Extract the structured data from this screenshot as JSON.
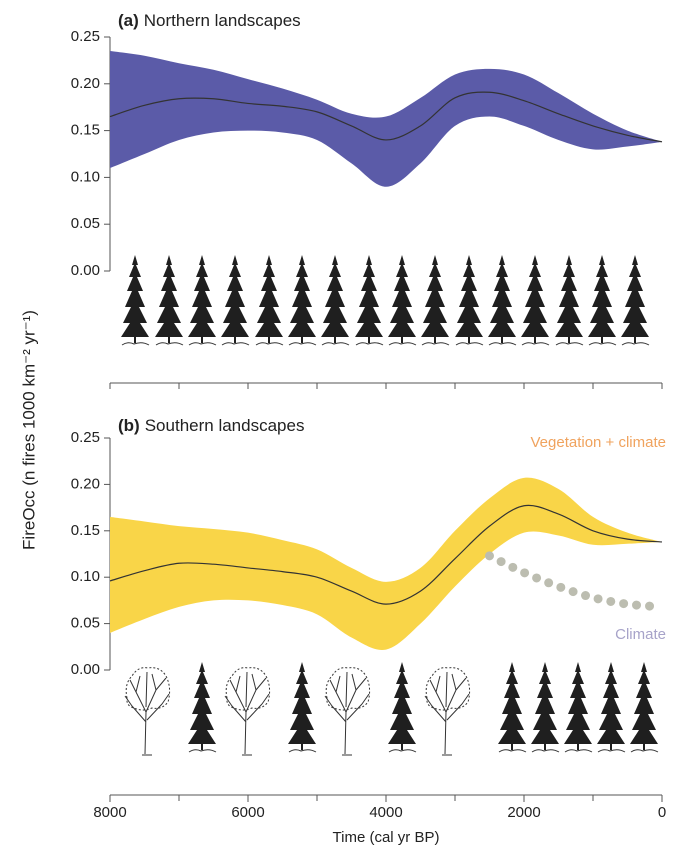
{
  "ylabel": "FireOcc (n fires 1000 km⁻² yr⁻¹)",
  "chart_data": [
    {
      "type": "band-line",
      "panel": "(a)",
      "title": "Northern landscapes",
      "x": [
        8000,
        7500,
        7000,
        6500,
        6000,
        5500,
        5000,
        4500,
        4000,
        3500,
        3000,
        2500,
        2000,
        1500,
        1000,
        500,
        0
      ],
      "band": {
        "color": "#5b5ba8",
        "upper": [
          0.235,
          0.23,
          0.222,
          0.215,
          0.205,
          0.195,
          0.183,
          0.168,
          0.165,
          0.185,
          0.21,
          0.216,
          0.21,
          0.19,
          0.168,
          0.15,
          0.138
        ],
        "lower": [
          0.11,
          0.125,
          0.14,
          0.148,
          0.15,
          0.148,
          0.14,
          0.115,
          0.09,
          0.115,
          0.155,
          0.165,
          0.155,
          0.14,
          0.13,
          0.133,
          0.138
        ]
      },
      "series": [
        {
          "color": "#333333",
          "style": "solid",
          "values": [
            0.165,
            0.177,
            0.184,
            0.184,
            0.179,
            0.176,
            0.17,
            0.155,
            0.14,
            0.155,
            0.185,
            0.191,
            0.182,
            0.168,
            0.155,
            0.145,
            0.138
          ]
        }
      ],
      "xlim": [
        8000,
        0
      ],
      "xminorticks": [
        8000,
        7000,
        6000,
        5000,
        4000,
        3000,
        2000,
        1000,
        0
      ],
      "ylim": [
        0,
        0.25
      ],
      "yticks": [
        {
          "value": 0,
          "label": "0.00"
        },
        0.05,
        {
          "value": 0.1,
          "label": "0.10"
        },
        0.15,
        {
          "value": 0.2,
          "label": "0.20"
        },
        0.25
      ]
    },
    {
      "type": "band-line",
      "panel": "(b)",
      "title": "Southern landscapes",
      "x": [
        8000,
        7500,
        7000,
        6500,
        6000,
        5500,
        5000,
        4500,
        4000,
        3500,
        3000,
        2500,
        2000,
        1500,
        1000,
        500,
        0
      ],
      "band": {
        "color": "#f9d548",
        "upper": [
          0.165,
          0.16,
          0.155,
          0.152,
          0.148,
          0.14,
          0.13,
          0.11,
          0.095,
          0.11,
          0.15,
          0.185,
          0.207,
          0.195,
          0.165,
          0.148,
          0.138
        ],
        "lower": [
          0.04,
          0.055,
          0.068,
          0.075,
          0.075,
          0.07,
          0.06,
          0.035,
          0.022,
          0.05,
          0.09,
          0.125,
          0.148,
          0.145,
          0.135,
          0.136,
          0.138
        ]
      },
      "series": [
        {
          "name": "Vegetation + climate",
          "color": "#333333",
          "label_color": "#f0a35e",
          "style": "solid",
          "values": [
            0.096,
            0.107,
            0.115,
            0.114,
            0.11,
            0.106,
            0.1,
            0.085,
            0.071,
            0.085,
            0.12,
            0.155,
            0.177,
            0.168,
            0.15,
            0.141,
            0.138
          ]
        },
        {
          "name": "Climate",
          "color": "#bcbdb0",
          "label_color": "#a7a3c9",
          "style": "dotted",
          "values": [
            null,
            null,
            null,
            null,
            null,
            null,
            null,
            null,
            null,
            null,
            null,
            0.123,
            0.105,
            0.09,
            0.078,
            0.071,
            0.068
          ]
        }
      ],
      "xlim": [
        8000,
        0
      ],
      "xticks": [
        8000,
        6000,
        4000,
        2000,
        0
      ],
      "xminorticks": [
        7000,
        5000,
        3000,
        1000
      ],
      "xlabel": "Time (cal yr BP)",
      "ylim": [
        0,
        0.25
      ],
      "yticks": [
        {
          "value": 0,
          "label": "0.00"
        },
        0.05,
        {
          "value": 0.1,
          "label": "0.10"
        },
        0.15,
        {
          "value": 0.2,
          "label": "0.20"
        },
        0.25
      ]
    }
  ]
}
